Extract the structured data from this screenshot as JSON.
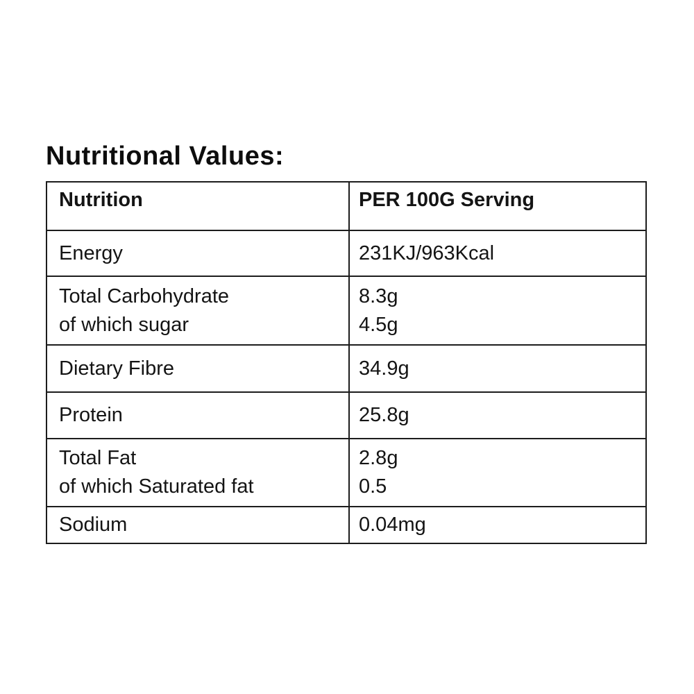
{
  "page": {
    "title": "Nutritional Values:"
  },
  "colors": {
    "background": "#ffffff",
    "text": "#141414",
    "title_text": "#0d0d0d",
    "border": "#1c1c1c"
  },
  "table": {
    "headers": [
      "Nutrition",
      "PER 100G Serving"
    ],
    "rows": [
      {
        "label_lines": [
          "Energy"
        ],
        "value_lines": [
          "231KJ/963Kcal"
        ]
      },
      {
        "label_lines": [
          "Total Carbohydrate",
          "of which sugar"
        ],
        "value_lines": [
          "8.3g",
          "4.5g"
        ]
      },
      {
        "label_lines": [
          "Dietary Fibre"
        ],
        "value_lines": [
          "34.9g"
        ]
      },
      {
        "label_lines": [
          "Protein"
        ],
        "value_lines": [
          "25.8g"
        ]
      },
      {
        "label_lines": [
          "Total Fat",
          "of which Saturated fat"
        ],
        "value_lines": [
          "2.8g",
          "0.5"
        ]
      },
      {
        "label_lines": [
          "Sodium"
        ],
        "value_lines": [
          "0.04mg"
        ]
      }
    ]
  }
}
